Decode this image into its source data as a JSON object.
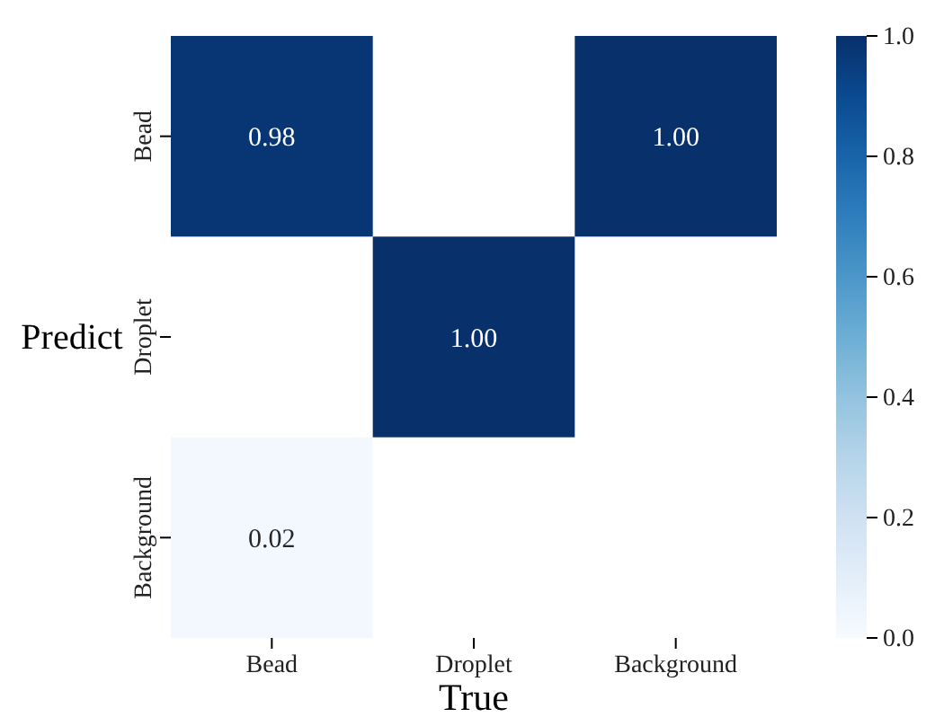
{
  "chart_data": {
    "type": "heatmap",
    "xlabel": "True",
    "ylabel": "Predict",
    "categories": [
      "Bead",
      "Droplet",
      "Background"
    ],
    "y_categories": [
      "Bead",
      "Droplet",
      "Background"
    ],
    "cells": [
      [
        0.98,
        null,
        1.0
      ],
      [
        null,
        1.0,
        null
      ],
      [
        0.02,
        null,
        null
      ]
    ],
    "cell_labels": [
      [
        "0.98",
        null,
        "1.00"
      ],
      [
        null,
        "1.00",
        null
      ],
      [
        "0.02",
        null,
        null
      ]
    ],
    "clim": [
      0,
      1
    ],
    "cticks": [
      {
        "value": 0,
        "label": "0.0"
      },
      {
        "value": 0.2,
        "label": "0.2"
      },
      {
        "value": 0.4,
        "label": "0.4"
      },
      {
        "value": 0.6,
        "label": "0.6"
      },
      {
        "value": 0.8,
        "label": "0.8"
      },
      {
        "value": 1,
        "label": "1.0"
      }
    ]
  }
}
